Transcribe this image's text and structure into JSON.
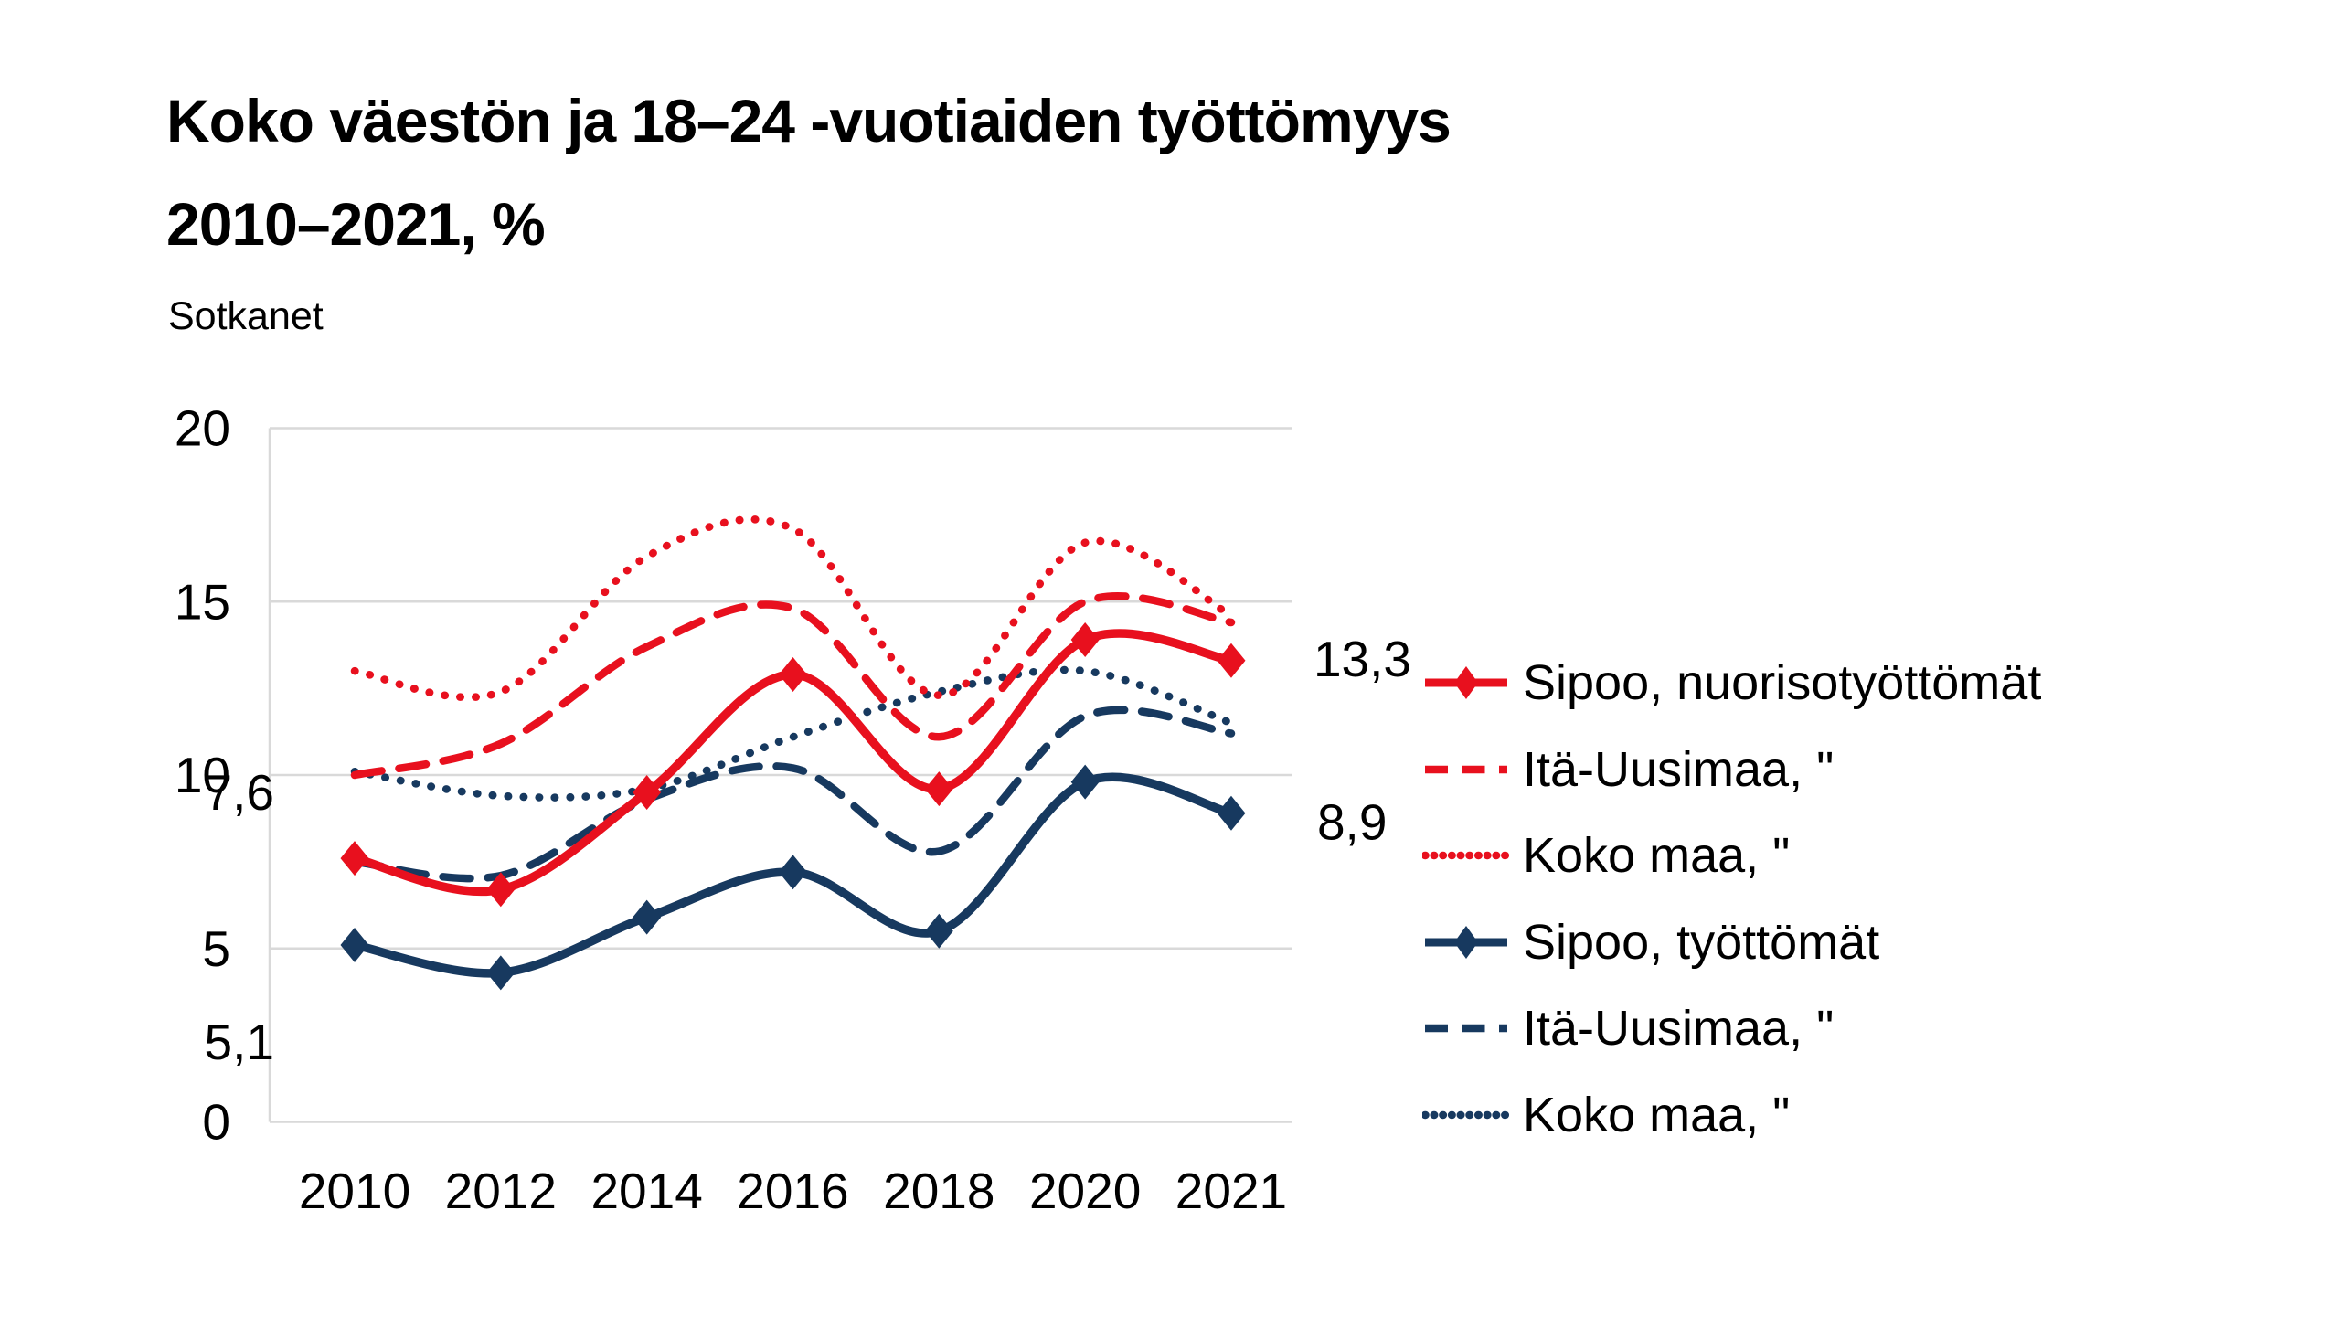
{
  "title": {
    "line1": "Koko väestön ja 18–24 -vuotiaiden työttömyys",
    "line2": "2010–2021, %"
  },
  "subtitle": "Sotkanet",
  "colors": {
    "red": "#e8101e",
    "navy": "#17395f",
    "gridline": "#d9d9d9",
    "text": "#000000",
    "background": "#ffffff"
  },
  "chart_data": {
    "type": "line",
    "title": "Koko väestön ja 18–24 -vuotiaiden työttömyys 2010–2021, %",
    "subtitle": "Sotkanet",
    "categories": [
      "2010",
      "2012",
      "2014",
      "2016",
      "2018",
      "2020",
      "2021"
    ],
    "ylim": [
      0,
      20
    ],
    "yticks": [
      "0",
      "5",
      "10",
      "15",
      "20"
    ],
    "grid": true,
    "smoothed": true,
    "legend_position": "right",
    "series": [
      {
        "name": "Sipoo, nuorisotyöttömät",
        "color": "#e8101e",
        "line_style": "solid",
        "marker": "diamond",
        "values": [
          7.6,
          6.7,
          9.5,
          12.9,
          9.6,
          13.9,
          13.3
        ],
        "point_labels": {
          "first": "7,6",
          "last": "13,3"
        }
      },
      {
        "name": "Itä-Uusimaa, \"",
        "color": "#e8101e",
        "line_style": "dashed",
        "marker": "none",
        "values": [
          10.0,
          10.9,
          13.7,
          14.8,
          11.1,
          15.0,
          14.4
        ]
      },
      {
        "name": "Koko maa, \"",
        "color": "#e8101e",
        "line_style": "dotted",
        "marker": "none",
        "values": [
          13.0,
          12.4,
          16.3,
          17.1,
          12.3,
          16.7,
          14.6
        ]
      },
      {
        "name": "Sipoo, työttömät",
        "color": "#17395f",
        "line_style": "solid",
        "marker": "diamond",
        "values": [
          5.1,
          4.3,
          5.9,
          7.2,
          5.5,
          9.8,
          8.9
        ],
        "point_labels": {
          "first": "5,1",
          "last": "8,9"
        }
      },
      {
        "name": "Itä-Uusimaa, \"",
        "color": "#17395f",
        "line_style": "dashed",
        "marker": "none",
        "values": [
          7.5,
          7.1,
          9.3,
          10.2,
          7.8,
          11.7,
          11.2
        ]
      },
      {
        "name": "Koko maa, \"",
        "color": "#17395f",
        "line_style": "dotted",
        "marker": "none",
        "values": [
          10.1,
          9.4,
          9.6,
          11.1,
          12.4,
          13.0,
          11.5
        ]
      }
    ]
  }
}
